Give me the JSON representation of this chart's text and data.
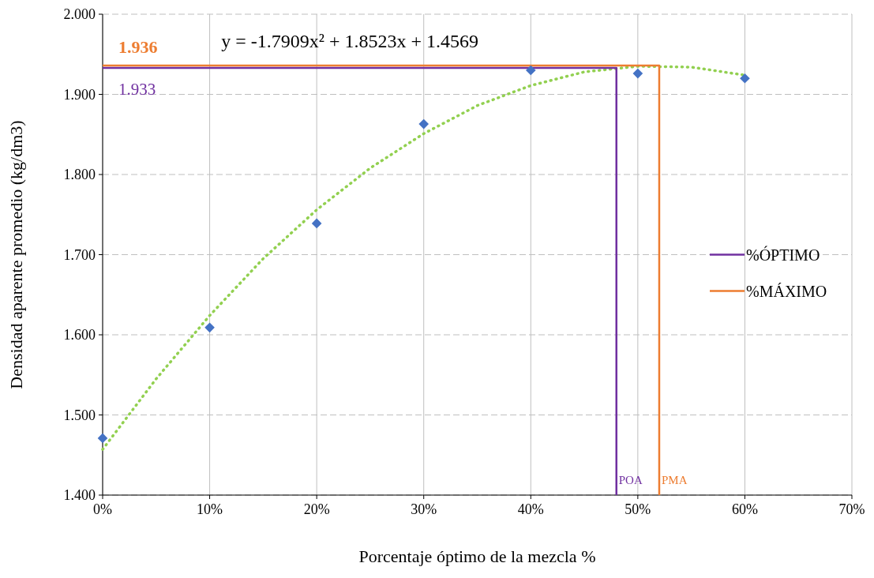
{
  "chart_data": {
    "type": "scatter",
    "xlabel": "Porcentaje óptimo de la mezcla %",
    "ylabel": "Densidad aparente promedio (kg/dm3)",
    "xlim": [
      0,
      70
    ],
    "ylim": [
      1.4,
      2.0
    ],
    "xticks": [
      {
        "value": 0,
        "label": "0%"
      },
      {
        "value": 10,
        "label": "10%"
      },
      {
        "value": 20,
        "label": "20%"
      },
      {
        "value": 30,
        "label": "30%"
      },
      {
        "value": 40,
        "label": "40%"
      },
      {
        "value": 50,
        "label": "50%"
      },
      {
        "value": 60,
        "label": "60%"
      },
      {
        "value": 70,
        "label": "70%"
      }
    ],
    "yticks": [
      {
        "value": 1.4,
        "label": "1.400"
      },
      {
        "value": 1.5,
        "label": "1.500"
      },
      {
        "value": 1.6,
        "label": "1.600"
      },
      {
        "value": 1.7,
        "label": "1.700"
      },
      {
        "value": 1.8,
        "label": "1.800"
      },
      {
        "value": 1.9,
        "label": "1.900"
      },
      {
        "value": 2.0,
        "label": "2.000"
      }
    ],
    "grid": true,
    "legend": "right",
    "series": [
      {
        "marker": "diamond",
        "color": "#4472c4",
        "x": [
          0,
          10,
          20,
          30,
          40,
          50,
          60
        ],
        "values": [
          1.471,
          1.609,
          1.739,
          1.863,
          1.93,
          1.926,
          1.92
        ]
      },
      {
        "type": "line",
        "line_style": "dotted",
        "marker": "none",
        "color": "#92d050",
        "x": [
          0,
          5,
          10,
          15,
          20,
          25,
          30,
          35,
          40,
          45,
          50,
          55,
          60
        ],
        "values": [
          1.457,
          1.545,
          1.624,
          1.695,
          1.756,
          1.808,
          1.851,
          1.886,
          1.911,
          1.928,
          1.935,
          1.934,
          1.924
        ]
      },
      {
        "type": "line",
        "name": "%ÓPTIMO",
        "line_style": "solid",
        "marker": "none",
        "color": "#7030a0",
        "x": [
          0,
          48,
          48
        ],
        "values": [
          1.933,
          1.933,
          1.4
        ]
      },
      {
        "type": "line",
        "name": "%MÁXIMO",
        "line_style": "solid",
        "marker": "none",
        "color": "#ed7d31",
        "x": [
          0,
          52,
          52
        ],
        "values": [
          1.936,
          1.936,
          1.4
        ]
      }
    ],
    "annotations": [
      "y = -1.7909x² + 1.8523x + 1.4569",
      {
        "text": "1.936",
        "x": 0,
        "y": 1.936
      },
      {
        "text": "1.933",
        "x": 0,
        "y": 1.933
      },
      {
        "text": "POA",
        "x": 48,
        "y": 1.4
      },
      {
        "text": "PMA",
        "x": 52,
        "y": 1.4
      }
    ]
  }
}
